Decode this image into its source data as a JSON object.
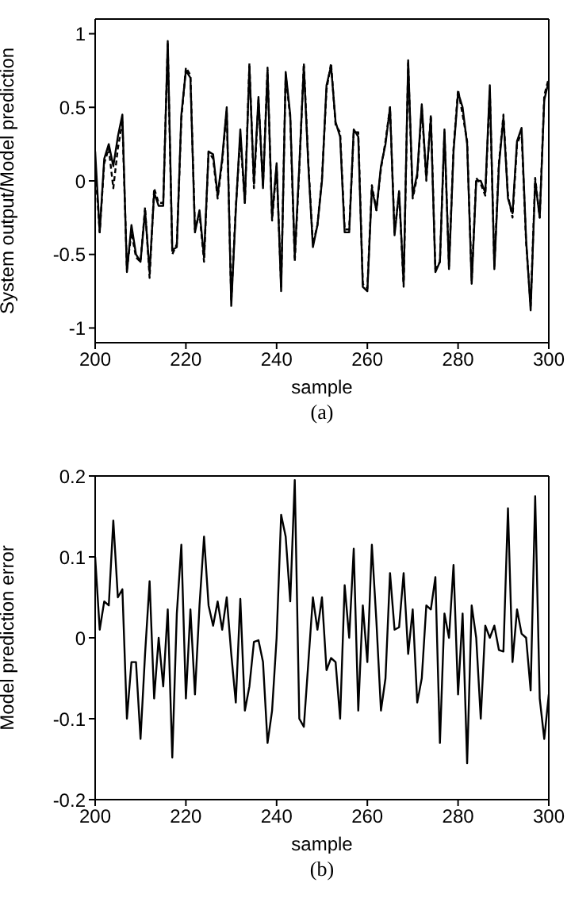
{
  "chart_data": [
    {
      "type": "line",
      "xlabel": "sample",
      "ylabel": "System output/Model prediction",
      "annotations": [
        "(a)"
      ],
      "x": [
        200,
        201,
        202,
        203,
        204,
        205,
        206,
        207,
        208,
        209,
        210,
        211,
        212,
        213,
        214,
        215,
        216,
        217,
        218,
        219,
        220,
        221,
        222,
        223,
        224,
        225,
        226,
        227,
        228,
        229,
        230,
        231,
        232,
        233,
        234,
        235,
        236,
        237,
        238,
        239,
        240,
        241,
        242,
        243,
        244,
        245,
        246,
        247,
        248,
        249,
        250,
        251,
        252,
        253,
        254,
        255,
        256,
        257,
        258,
        259,
        260,
        261,
        262,
        263,
        264,
        265,
        266,
        267,
        268,
        269,
        270,
        271,
        272,
        273,
        274,
        275,
        276,
        277,
        278,
        279,
        280,
        281,
        282,
        283,
        284,
        285,
        286,
        287,
        288,
        289,
        290,
        291,
        292,
        293,
        294,
        295,
        296,
        297,
        298,
        299,
        300
      ],
      "xlim": [
        200,
        300
      ],
      "xticks": [
        200,
        220,
        240,
        260,
        280,
        300
      ],
      "ylim": [
        -1.1,
        1.1
      ],
      "yticks": [
        -1,
        -0.5,
        0,
        0.5,
        1
      ],
      "marker": "none",
      "series": [
        {
          "color": "#000000",
          "line_style": "solid",
          "values": [
            0.2,
            -0.35,
            0.15,
            0.25,
            0.1,
            0.3,
            0.45,
            -0.62,
            -0.3,
            -0.5,
            -0.55,
            -0.2,
            -0.62,
            -0.08,
            -0.17,
            -0.17,
            0.95,
            -0.47,
            -0.45,
            0.45,
            0.75,
            0.7,
            -0.35,
            -0.2,
            -0.52,
            0.2,
            0.18,
            -0.1,
            0.15,
            0.5,
            -0.85,
            -0.2,
            0.35,
            -0.15,
            0.78,
            -0.02,
            0.57,
            -0.05,
            0.75,
            -0.25,
            0.12,
            -0.75,
            0.74,
            0.45,
            -0.52,
            0.1,
            0.78,
            0.1,
            -0.45,
            -0.3,
            0.0,
            0.65,
            0.78,
            0.4,
            0.3,
            -0.35,
            -0.35,
            0.35,
            0.3,
            -0.72,
            -0.75,
            -0.05,
            -0.2,
            0.1,
            0.25,
            0.5,
            -0.37,
            -0.07,
            -0.7,
            0.82,
            -0.1,
            0.05,
            0.52,
            0.02,
            0.43,
            -0.62,
            -0.55,
            0.35,
            -0.6,
            0.2,
            0.6,
            0.5,
            0.25,
            -0.7,
            0.0,
            0.0,
            -0.08,
            0.65,
            -0.6,
            0.1,
            0.43,
            -0.12,
            -0.22,
            0.27,
            0.36,
            -0.4,
            -0.88,
            0.0,
            -0.25,
            0.55,
            0.68
          ]
        },
        {
          "color": "#000000",
          "line_style": "dashed",
          "values": [
            0.1,
            -0.35,
            0.12,
            0.22,
            -0.05,
            0.22,
            0.4,
            -0.6,
            -0.35,
            -0.52,
            -0.55,
            -0.18,
            -0.66,
            -0.05,
            -0.15,
            -0.15,
            0.93,
            -0.5,
            -0.43,
            0.42,
            0.77,
            0.72,
            -0.33,
            -0.22,
            -0.55,
            0.2,
            0.15,
            -0.12,
            0.13,
            0.48,
            -0.82,
            -0.18,
            0.3,
            -0.15,
            0.8,
            -0.05,
            0.55,
            -0.03,
            0.77,
            -0.27,
            0.1,
            -0.72,
            0.72,
            0.43,
            -0.55,
            0.08,
            0.8,
            0.12,
            -0.43,
            -0.3,
            0.02,
            0.62,
            0.8,
            0.38,
            0.33,
            -0.33,
            -0.33,
            0.33,
            0.33,
            -0.7,
            -0.73,
            -0.03,
            -0.2,
            0.08,
            0.27,
            0.5,
            -0.35,
            -0.08,
            -0.72,
            0.8,
            -0.12,
            0.03,
            0.5,
            0.0,
            0.45,
            -0.6,
            -0.55,
            0.33,
            -0.58,
            0.22,
            0.62,
            0.45,
            0.27,
            -0.68,
            0.02,
            -0.02,
            -0.1,
            0.62,
            -0.58,
            0.12,
            0.45,
            -0.1,
            -0.25,
            0.25,
            0.33,
            -0.42,
            -0.85,
            0.02,
            -0.25,
            0.58,
            0.7
          ]
        }
      ]
    },
    {
      "type": "line",
      "xlabel": "sample",
      "ylabel": "Model prediction error",
      "annotations": [
        "(b)"
      ],
      "x": [
        200,
        201,
        202,
        203,
        204,
        205,
        206,
        207,
        208,
        209,
        210,
        211,
        212,
        213,
        214,
        215,
        216,
        217,
        218,
        219,
        220,
        221,
        222,
        223,
        224,
        225,
        226,
        227,
        228,
        229,
        230,
        231,
        232,
        233,
        234,
        235,
        236,
        237,
        238,
        239,
        240,
        241,
        242,
        243,
        244,
        245,
        246,
        247,
        248,
        249,
        250,
        251,
        252,
        253,
        254,
        255,
        256,
        257,
        258,
        259,
        260,
        261,
        262,
        263,
        264,
        265,
        266,
        267,
        268,
        269,
        270,
        271,
        272,
        273,
        274,
        275,
        276,
        277,
        278,
        279,
        280,
        281,
        282,
        283,
        284,
        285,
        286,
        287,
        288,
        289,
        290,
        291,
        292,
        293,
        294,
        295,
        296,
        297,
        298,
        299,
        300
      ],
      "xlim": [
        200,
        300
      ],
      "xticks": [
        200,
        220,
        240,
        260,
        280,
        300
      ],
      "ylim": [
        -0.2,
        0.2
      ],
      "yticks": [
        -0.2,
        -0.1,
        0,
        0.1,
        0.2
      ],
      "marker": "none",
      "series": [
        {
          "color": "#000000",
          "line_style": "solid",
          "values": [
            0.1,
            0.01,
            0.045,
            0.04,
            0.145,
            0.05,
            0.06,
            -0.1,
            -0.03,
            -0.03,
            -0.125,
            -0.02,
            0.07,
            -0.075,
            0.0,
            -0.06,
            0.035,
            -0.148,
            0.03,
            0.115,
            -0.075,
            0.035,
            -0.07,
            0.04,
            0.125,
            0.04,
            0.015,
            0.045,
            0.01,
            0.05,
            -0.02,
            -0.08,
            0.048,
            -0.09,
            -0.06,
            -0.005,
            -0.003,
            -0.03,
            -0.13,
            -0.09,
            0.0,
            0.152,
            0.125,
            0.045,
            0.195,
            -0.1,
            -0.11,
            -0.03,
            0.05,
            0.01,
            0.05,
            -0.04,
            -0.025,
            -0.03,
            -0.1,
            0.065,
            0.0,
            0.11,
            -0.09,
            0.04,
            -0.03,
            0.115,
            0.02,
            -0.09,
            -0.05,
            0.08,
            0.01,
            0.013,
            0.08,
            -0.02,
            0.035,
            -0.08,
            -0.05,
            0.04,
            0.035,
            0.075,
            -0.13,
            0.03,
            0.0,
            0.09,
            -0.07,
            0.03,
            -0.155,
            0.04,
            0.0,
            -0.1,
            0.015,
            0.0,
            0.015,
            -0.015,
            -0.017,
            0.16,
            -0.03,
            0.035,
            0.005,
            0.0,
            -0.065,
            0.175,
            -0.075,
            -0.125,
            -0.07
          ]
        }
      ]
    }
  ]
}
